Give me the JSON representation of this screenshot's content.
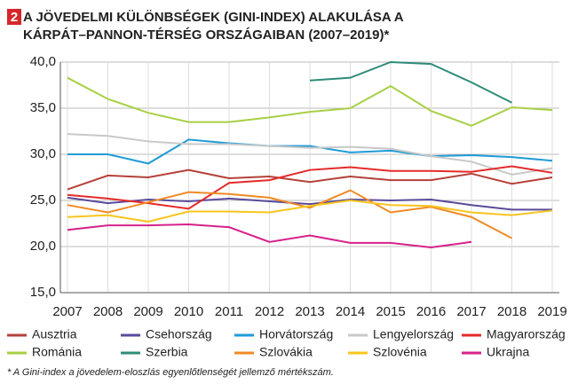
{
  "chart_data": {
    "type": "line",
    "badge": "2",
    "title_lines": [
      "A JÖVEDELMI KÜLÖNBSÉGEK (GINI-INDEX) ALAKULÁSA A",
      "KÁRPÁT–PANNON-TÉRSÉG ORSZÁGAIBAN (2007–2019)*"
    ],
    "footnote": "* A Gini-index a jövedelem-eloszlás egyenlőtlenségét jellemző mértékszám.",
    "categories": [
      "2007",
      "2008",
      "2009",
      "2010",
      "2011",
      "2012",
      "2013",
      "2014",
      "2015",
      "2016",
      "2017",
      "2018",
      "2019"
    ],
    "ylim": [
      15,
      40
    ],
    "yticks": [
      {
        "value": 15,
        "label": "15,0"
      },
      {
        "value": 20,
        "label": "20,0"
      },
      {
        "value": 25,
        "label": "25,0"
      },
      {
        "value": 30,
        "label": "30,0"
      },
      {
        "value": 35,
        "label": "35,0"
      },
      {
        "value": 40,
        "label": "40,0"
      }
    ],
    "grid": true,
    "series": [
      {
        "name": "Ausztria",
        "color": "#b5413a",
        "values": [
          26.2,
          27.7,
          27.5,
          28.3,
          27.4,
          27.6,
          27.0,
          27.6,
          27.2,
          27.2,
          27.9,
          26.8,
          27.5
        ]
      },
      {
        "name": "Csehország",
        "color": "#5a4a9a",
        "values": [
          25.3,
          24.7,
          25.1,
          24.9,
          25.2,
          24.9,
          24.6,
          25.1,
          25.0,
          25.1,
          24.5,
          24.0,
          24.0
        ]
      },
      {
        "name": "Horvátország",
        "color": "#1e9bd7",
        "values": [
          30.0,
          30.0,
          29.0,
          31.6,
          31.2,
          30.9,
          30.9,
          30.2,
          30.4,
          29.8,
          29.9,
          29.7,
          29.3
        ]
      },
      {
        "name": "Lengyelország",
        "color": "#c8c8c8",
        "values": [
          32.2,
          32.0,
          31.4,
          31.1,
          31.1,
          30.9,
          30.7,
          30.8,
          30.6,
          29.8,
          29.2,
          27.8,
          28.5
        ]
      },
      {
        "name": "Magyarország",
        "color": "#e52a2a",
        "values": [
          25.6,
          25.2,
          24.7,
          24.1,
          26.9,
          27.2,
          28.3,
          28.6,
          28.2,
          28.2,
          28.1,
          28.7,
          28.0
        ]
      },
      {
        "name": "Románia",
        "color": "#a8cf45",
        "values": [
          38.3,
          36.0,
          34.5,
          33.5,
          33.5,
          34.0,
          34.6,
          35.0,
          37.4,
          34.7,
          33.1,
          35.1,
          34.8
        ]
      },
      {
        "name": "Szerbia",
        "color": "#2e8b7a",
        "values": [
          null,
          null,
          null,
          null,
          null,
          null,
          38.0,
          38.3,
          40.0,
          39.8,
          37.8,
          35.6,
          null
        ]
      },
      {
        "name": "Szlovákia",
        "color": "#f08a24",
        "values": [
          24.5,
          23.7,
          24.8,
          25.9,
          25.7,
          25.3,
          24.2,
          26.1,
          23.7,
          24.3,
          23.2,
          20.9,
          null
        ]
      },
      {
        "name": "Szlovénia",
        "color": "#f7c51e",
        "values": [
          23.2,
          23.4,
          22.7,
          23.8,
          23.8,
          23.7,
          24.4,
          25.0,
          24.5,
          24.4,
          23.7,
          23.4,
          23.9
        ]
      },
      {
        "name": "Ukrajna",
        "color": "#d6228a",
        "values": [
          21.8,
          22.3,
          22.3,
          22.4,
          22.1,
          20.5,
          21.2,
          20.4,
          20.4,
          19.9,
          20.5,
          null,
          null
        ]
      }
    ]
  }
}
